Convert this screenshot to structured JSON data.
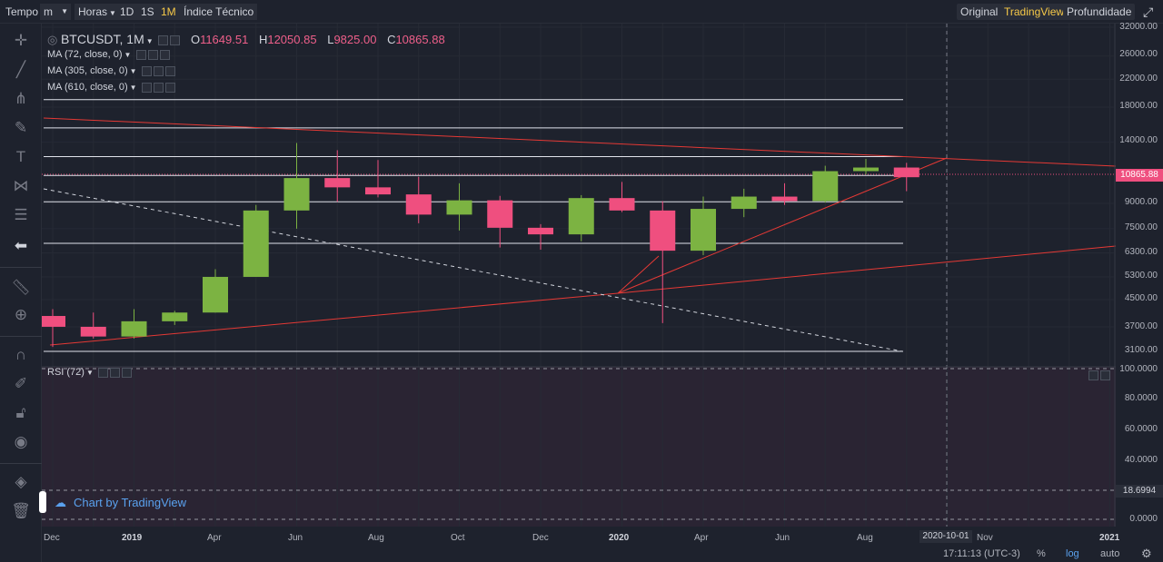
{
  "topbar": {
    "tempo": "Tempo",
    "interval_unit": "m",
    "hours": "Horas",
    "r1d": "1D",
    "r1s": "1S",
    "r1m": "1M",
    "indicators": "Índice Técnico",
    "original": "Original",
    "tradingview": "TradingView",
    "depth": "Profundidade"
  },
  "legend": {
    "symbol": "BTCUSDT, 1M",
    "o_label": "O",
    "o_value": "11649.51",
    "h_label": "H",
    "h_value": "12050.85",
    "l_label": "L",
    "l_value": "9825.00",
    "c_label": "C",
    "c_value": "10865.88",
    "ma1": "MA (72, close, 0)",
    "ma2": "MA (305, close, 0)",
    "ma3": "MA (610, close, 0)",
    "rsi": "RSI (72)"
  },
  "watermark": "Chart by TradingView",
  "bottom": {
    "time": "17:11:13 (UTC-3)",
    "percent": "%",
    "log": "log",
    "auto": "auto",
    "cursor_date": "2020-10-01"
  },
  "price_axis": {
    "labels": [
      "32000.00",
      "26000.00",
      "22000.00",
      "18000.00",
      "14000.00",
      "9000.00",
      "7500.00",
      "6300.00",
      "5300.00",
      "4500.00",
      "3700.00",
      "3100.00"
    ],
    "current": "10865.88"
  },
  "rsi_axis": {
    "labels": [
      "100.0000",
      "80.0000",
      "60.0000",
      "40.0000",
      "0.0000"
    ],
    "current": "18.6994"
  },
  "time_axis": [
    "Dec",
    "2019",
    "Apr",
    "Jun",
    "Aug",
    "Oct",
    "Dec",
    "2020",
    "Apr",
    "Jun",
    "Aug",
    "Nov",
    "2021"
  ],
  "chart_data": {
    "type": "candlestick",
    "symbol": "BTCUSDT",
    "interval": "1M",
    "scale": "log",
    "ylim": [
      2900,
      34000
    ],
    "candles": [
      {
        "date": "2018-12",
        "open": 4000,
        "high": 4200,
        "low": 3200,
        "close": 3700
      },
      {
        "date": "2019-01",
        "open": 3700,
        "high": 4100,
        "low": 3400,
        "close": 3450
      },
      {
        "date": "2019-02",
        "open": 3450,
        "high": 4200,
        "low": 3400,
        "close": 3850
      },
      {
        "date": "2019-03",
        "open": 3850,
        "high": 4150,
        "low": 3750,
        "close": 4100
      },
      {
        "date": "2019-04",
        "open": 4100,
        "high": 5600,
        "low": 4100,
        "close": 5300
      },
      {
        "date": "2019-05",
        "open": 5300,
        "high": 8900,
        "low": 5300,
        "close": 8550
      },
      {
        "date": "2019-06",
        "open": 8550,
        "high": 13900,
        "low": 7500,
        "close": 10800
      },
      {
        "date": "2019-07",
        "open": 10800,
        "high": 13200,
        "low": 9100,
        "close": 10100
      },
      {
        "date": "2019-08",
        "open": 10100,
        "high": 12300,
        "low": 9400,
        "close": 9600
      },
      {
        "date": "2019-09",
        "open": 9600,
        "high": 10900,
        "low": 7800,
        "close": 8300
      },
      {
        "date": "2019-10",
        "open": 8300,
        "high": 10400,
        "low": 7400,
        "close": 9200
      },
      {
        "date": "2019-11",
        "open": 9200,
        "high": 9500,
        "low": 6550,
        "close": 7550
      },
      {
        "date": "2019-12",
        "open": 7550,
        "high": 7750,
        "low": 6450,
        "close": 7200
      },
      {
        "date": "2020-01",
        "open": 7200,
        "high": 9550,
        "low": 6850,
        "close": 9350
      },
      {
        "date": "2020-02",
        "open": 9350,
        "high": 10500,
        "low": 8450,
        "close": 8550
      },
      {
        "date": "2020-03",
        "open": 8550,
        "high": 9150,
        "low": 3800,
        "close": 6400
      },
      {
        "date": "2020-04",
        "open": 6400,
        "high": 9450,
        "low": 6200,
        "close": 8650
      },
      {
        "date": "2020-05",
        "open": 8650,
        "high": 10000,
        "low": 8150,
        "close": 9450
      },
      {
        "date": "2020-06",
        "open": 9450,
        "high": 10400,
        "low": 8900,
        "close": 9150
      },
      {
        "date": "2020-07",
        "open": 9150,
        "high": 11800,
        "low": 9050,
        "close": 11350
      },
      {
        "date": "2020-08",
        "open": 11350,
        "high": 12400,
        "low": 11100,
        "close": 11650
      },
      {
        "date": "2020-09",
        "open": 11649.51,
        "high": 12050.85,
        "low": 9825.0,
        "close": 10865.88
      }
    ],
    "levels": [
      19000,
      15500,
      12600,
      11000,
      9100,
      6750,
      3100
    ],
    "rsi_current": 18.6994
  },
  "colors": {
    "up": "#7cb342",
    "down": "#ef4f7f",
    "accent": "#f7c948",
    "trend": "#e53935"
  }
}
